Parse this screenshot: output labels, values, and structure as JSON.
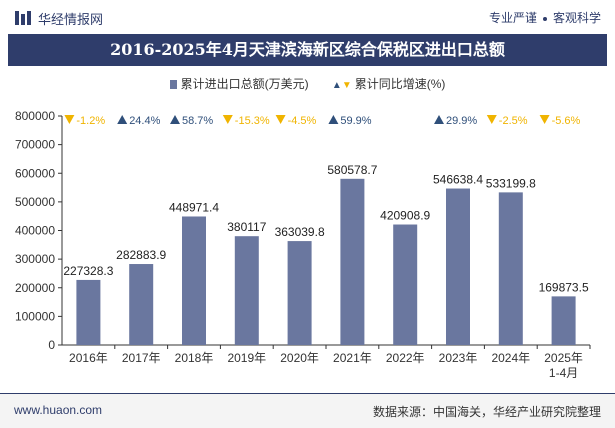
{
  "header": {
    "brand": "华经情报网",
    "tagline_left": "专业严谨",
    "tagline_right": "客观科学"
  },
  "footer": {
    "url": "www.huaon.com",
    "source": "数据来源：中国海关，华经产业研究院整理"
  },
  "colors": {
    "bar": "#6a779f",
    "up": "#2f4f7a",
    "down": "#f0b400",
    "title_bg": "#2f3d6b"
  },
  "chart_data": {
    "type": "bar",
    "title": "2016-2025年4月天津滨海新区综合保税区进出口总额",
    "legend": {
      "bar_label": "累计进出口总额(万美元)",
      "growth_label": "累计同比增速(%)"
    },
    "categories": [
      "2016年",
      "2017年",
      "2018年",
      "2019年",
      "2020年",
      "2021年",
      "2022年",
      "2023年",
      "2024年",
      "2025年\n1-4月"
    ],
    "series": [
      {
        "name": "累计进出口总额(万美元)",
        "values": [
          227328.3,
          282883.9,
          448971.4,
          380117,
          363039.8,
          580578.7,
          420908.9,
          546638.4,
          533199.8,
          169873.5
        ],
        "labels": [
          "227328.3",
          "282883.9",
          "448971.4",
          "380117",
          "363039.8",
          "580578.7",
          "420908.9",
          "546638.4",
          "533199.8",
          "169873.5"
        ]
      },
      {
        "name": "累计同比增速(%)",
        "values": [
          -1.2,
          24.4,
          58.7,
          -15.3,
          -4.5,
          59.9,
          null,
          29.9,
          -2.5,
          -5.6
        ],
        "labels": [
          "-1.2%",
          "24.4%",
          "58.7%",
          "-15.3%",
          "-4.5%",
          "59.9%",
          "",
          "29.9%",
          "-2.5%",
          "-5.6%"
        ]
      }
    ],
    "ylim": [
      0,
      800000
    ],
    "yticks": [
      0,
      100000,
      200000,
      300000,
      400000,
      500000,
      600000,
      700000,
      800000
    ],
    "ytick_labels": [
      "0",
      "100000",
      "200000",
      "300000",
      "400000",
      "500000",
      "600000",
      "700000",
      "800000"
    ],
    "grid": false
  }
}
